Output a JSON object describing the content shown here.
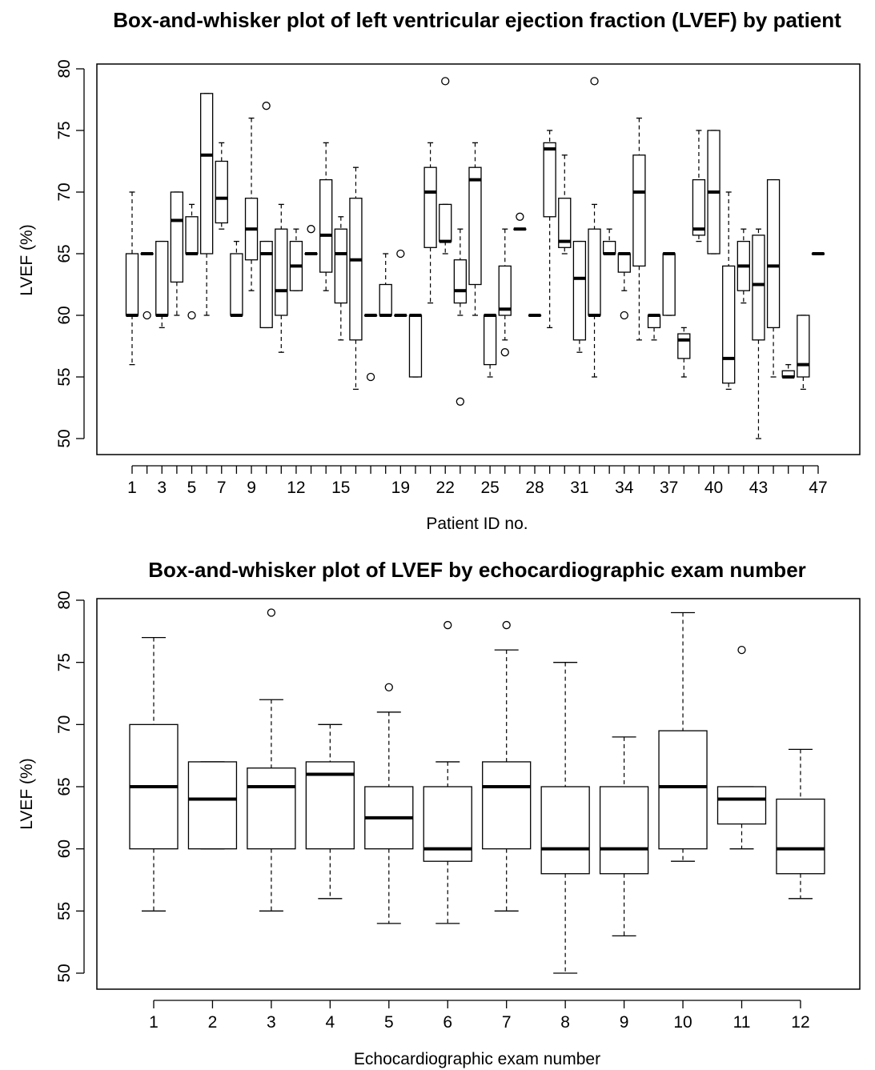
{
  "chart_data": [
    {
      "type": "boxplot",
      "title": "Box-and-whisker plot of left ventricular ejection fraction (LVEF) by patient",
      "xlabel": "Patient ID no.",
      "ylabel": "LVEF (%)",
      "ylim": [
        50,
        80
      ],
      "yticks": [
        50,
        55,
        60,
        65,
        70,
        75,
        80
      ],
      "x_tick_labels": [
        "1",
        "3",
        "5",
        "7",
        "9",
        "12",
        "15",
        "19",
        "22",
        "25",
        "28",
        "31",
        "34",
        "37",
        "40",
        "43",
        "47"
      ],
      "boxes": [
        {
          "whisker_low": 56,
          "q1": 60,
          "median": 60,
          "q3": 65,
          "whisker_high": 70,
          "outliers": []
        },
        {
          "whisker_low": 65,
          "q1": 65,
          "median": 65,
          "q3": 65,
          "whisker_high": 65,
          "outliers": [
            60
          ]
        },
        {
          "whisker_low": 59,
          "q1": 60,
          "median": 60,
          "q3": 66,
          "whisker_high": 66,
          "outliers": []
        },
        {
          "whisker_low": 60,
          "q1": 62.7,
          "median": 67.7,
          "q3": 70,
          "whisker_high": 70,
          "outliers": []
        },
        {
          "whisker_low": 65,
          "q1": 65,
          "median": 65,
          "q3": 68,
          "whisker_high": 69,
          "outliers": [
            60
          ]
        },
        {
          "whisker_low": 60,
          "q1": 65,
          "median": 73,
          "q3": 78,
          "whisker_high": 78,
          "outliers": []
        },
        {
          "whisker_low": 67,
          "q1": 67.5,
          "median": 69.5,
          "q3": 72.5,
          "whisker_high": 74,
          "outliers": []
        },
        {
          "whisker_low": 60,
          "q1": 60,
          "median": 60,
          "q3": 65,
          "whisker_high": 66,
          "outliers": []
        },
        {
          "whisker_low": 62,
          "q1": 64.5,
          "median": 67,
          "q3": 69.5,
          "whisker_high": 76,
          "outliers": []
        },
        {
          "whisker_low": 59,
          "q1": 59,
          "median": 65,
          "q3": 66,
          "whisker_high": 66,
          "outliers": [
            77
          ]
        },
        {
          "whisker_low": 57,
          "q1": 60,
          "median": 62,
          "q3": 67,
          "whisker_high": 69,
          "outliers": []
        },
        {
          "whisker_low": 62,
          "q1": 62,
          "median": 64,
          "q3": 66,
          "whisker_high": 67,
          "outliers": []
        },
        {
          "whisker_low": 65,
          "q1": 65,
          "median": 65,
          "q3": 65,
          "whisker_high": 65,
          "outliers": [
            67
          ]
        },
        {
          "whisker_low": 62,
          "q1": 63.5,
          "median": 66.5,
          "q3": 71,
          "whisker_high": 74,
          "outliers": []
        },
        {
          "whisker_low": 58,
          "q1": 61,
          "median": 65,
          "q3": 67,
          "whisker_high": 68,
          "outliers": []
        },
        {
          "whisker_low": 54,
          "q1": 58,
          "median": 64.5,
          "q3": 69.5,
          "whisker_high": 72,
          "outliers": []
        },
        {
          "whisker_low": 60,
          "q1": 60,
          "median": 60,
          "q3": 60,
          "whisker_high": 60,
          "outliers": [
            55
          ]
        },
        {
          "whisker_low": 60,
          "q1": 60,
          "median": 60,
          "q3": 62.5,
          "whisker_high": 65,
          "outliers": []
        },
        {
          "whisker_low": 60,
          "q1": 60,
          "median": 60,
          "q3": 60,
          "whisker_high": 60,
          "outliers": [
            65
          ]
        },
        {
          "whisker_low": 55,
          "q1": 55,
          "median": 60,
          "q3": 60,
          "whisker_high": 60,
          "outliers": []
        },
        {
          "whisker_low": 61,
          "q1": 65.5,
          "median": 70,
          "q3": 72,
          "whisker_high": 74,
          "outliers": []
        },
        {
          "whisker_low": 65,
          "q1": 66,
          "median": 66,
          "q3": 69,
          "whisker_high": 69,
          "outliers": [
            79
          ]
        },
        {
          "whisker_low": 60,
          "q1": 61,
          "median": 62,
          "q3": 64.5,
          "whisker_high": 67,
          "outliers": [
            53
          ]
        },
        {
          "whisker_low": 60,
          "q1": 62.5,
          "median": 71,
          "q3": 72,
          "whisker_high": 74,
          "outliers": []
        },
        {
          "whisker_low": 55,
          "q1": 56,
          "median": 60,
          "q3": 60,
          "whisker_high": 60,
          "outliers": []
        },
        {
          "whisker_low": 58,
          "q1": 60,
          "median": 60.5,
          "q3": 64,
          "whisker_high": 67,
          "outliers": [
            57
          ]
        },
        {
          "whisker_low": 67,
          "q1": 67,
          "median": 67,
          "q3": 67,
          "whisker_high": 67,
          "outliers": [
            68
          ]
        },
        {
          "whisker_low": 60,
          "q1": 60,
          "median": 60,
          "q3": 60,
          "whisker_high": 60,
          "outliers": []
        },
        {
          "whisker_low": 59,
          "q1": 68,
          "median": 73.5,
          "q3": 74,
          "whisker_high": 75,
          "outliers": []
        },
        {
          "whisker_low": 65,
          "q1": 65.5,
          "median": 66,
          "q3": 69.5,
          "whisker_high": 73,
          "outliers": []
        },
        {
          "whisker_low": 57,
          "q1": 58,
          "median": 63,
          "q3": 66,
          "whisker_high": 66,
          "outliers": []
        },
        {
          "whisker_low": 55,
          "q1": 60,
          "median": 60,
          "q3": 67,
          "whisker_high": 69,
          "outliers": [
            79
          ]
        },
        {
          "whisker_low": 65,
          "q1": 65,
          "median": 65,
          "q3": 66,
          "whisker_high": 67,
          "outliers": []
        },
        {
          "whisker_low": 62,
          "q1": 63.5,
          "median": 65,
          "q3": 65,
          "whisker_high": 65,
          "outliers": [
            60
          ]
        },
        {
          "whisker_low": 58,
          "q1": 64,
          "median": 70,
          "q3": 73,
          "whisker_high": 76,
          "outliers": []
        },
        {
          "whisker_low": 58,
          "q1": 59,
          "median": 60,
          "q3": 60,
          "whisker_high": 60,
          "outliers": []
        },
        {
          "whisker_low": 60,
          "q1": 60,
          "median": 65,
          "q3": 65,
          "whisker_high": 65,
          "outliers": []
        },
        {
          "whisker_low": 55,
          "q1": 56.5,
          "median": 58,
          "q3": 58.5,
          "whisker_high": 59,
          "outliers": []
        },
        {
          "whisker_low": 66,
          "q1": 66.5,
          "median": 67,
          "q3": 71,
          "whisker_high": 75,
          "outliers": []
        },
        {
          "whisker_low": 65,
          "q1": 65,
          "median": 70,
          "q3": 75,
          "whisker_high": 75,
          "outliers": []
        },
        {
          "whisker_low": 54,
          "q1": 54.5,
          "median": 56.5,
          "q3": 64,
          "whisker_high": 70,
          "outliers": []
        },
        {
          "whisker_low": 61,
          "q1": 62,
          "median": 64,
          "q3": 66,
          "whisker_high": 67,
          "outliers": []
        },
        {
          "whisker_low": 50,
          "q1": 58,
          "median": 62.5,
          "q3": 66.5,
          "whisker_high": 67,
          "outliers": []
        },
        {
          "whisker_low": 55,
          "q1": 59,
          "median": 64,
          "q3": 71,
          "whisker_high": 71,
          "outliers": []
        },
        {
          "whisker_low": 55,
          "q1": 55,
          "median": 55,
          "q3": 55.5,
          "whisker_high": 56,
          "outliers": []
        },
        {
          "whisker_low": 54,
          "q1": 55,
          "median": 56,
          "q3": 60,
          "whisker_high": 60,
          "outliers": []
        },
        {
          "whisker_low": 65,
          "q1": 65,
          "median": 65,
          "q3": 65,
          "whisker_high": 65,
          "outliers": []
        }
      ]
    },
    {
      "type": "boxplot",
      "title": "Box-and-whisker plot of LVEF by echocardiographic exam number",
      "xlabel": "Echocardiographic exam number",
      "ylabel": "LVEF (%)",
      "ylim": [
        50,
        80
      ],
      "yticks": [
        50,
        55,
        60,
        65,
        70,
        75,
        80
      ],
      "categories": [
        "1",
        "2",
        "3",
        "4",
        "5",
        "6",
        "7",
        "8",
        "9",
        "10",
        "11",
        "12"
      ],
      "boxes": [
        {
          "whisker_low": 55,
          "q1": 60,
          "median": 65,
          "q3": 70,
          "whisker_high": 77,
          "outliers": []
        },
        {
          "whisker_low": 60,
          "q1": 60,
          "median": 64,
          "q3": 67,
          "whisker_high": 67,
          "outliers": []
        },
        {
          "whisker_low": 55,
          "q1": 60,
          "median": 65,
          "q3": 66.5,
          "whisker_high": 72,
          "outliers": [
            79
          ]
        },
        {
          "whisker_low": 56,
          "q1": 60,
          "median": 66,
          "q3": 67,
          "whisker_high": 70,
          "outliers": []
        },
        {
          "whisker_low": 54,
          "q1": 60,
          "median": 62.5,
          "q3": 65,
          "whisker_high": 71,
          "outliers": [
            73
          ]
        },
        {
          "whisker_low": 54,
          "q1": 59,
          "median": 60,
          "q3": 65,
          "whisker_high": 67,
          "outliers": [
            78
          ]
        },
        {
          "whisker_low": 55,
          "q1": 60,
          "median": 65,
          "q3": 67,
          "whisker_high": 76,
          "outliers": [
            78
          ]
        },
        {
          "whisker_low": 50,
          "q1": 58,
          "median": 60,
          "q3": 65,
          "whisker_high": 75,
          "outliers": []
        },
        {
          "whisker_low": 53,
          "q1": 58,
          "median": 60,
          "q3": 65,
          "whisker_high": 69,
          "outliers": []
        },
        {
          "whisker_low": 59,
          "q1": 60,
          "median": 65,
          "q3": 69.5,
          "whisker_high": 79,
          "outliers": []
        },
        {
          "whisker_low": 60,
          "q1": 62,
          "median": 64,
          "q3": 65,
          "whisker_high": 65,
          "outliers": [
            76
          ]
        },
        {
          "whisker_low": 56,
          "q1": 58,
          "median": 60,
          "q3": 64,
          "whisker_high": 68,
          "outliers": []
        }
      ]
    }
  ]
}
